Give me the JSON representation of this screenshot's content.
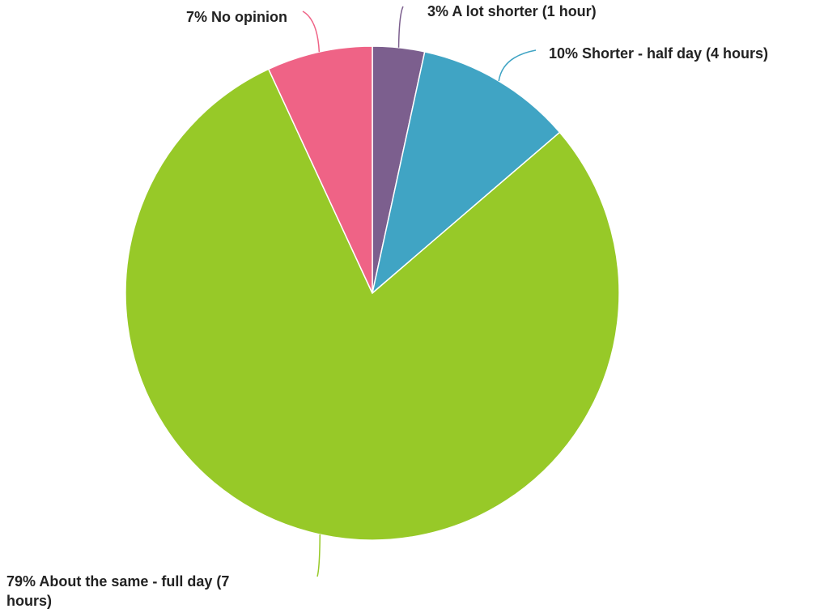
{
  "chart_data": {
    "type": "pie",
    "title": "",
    "start": "top",
    "direction": "clockwise",
    "slices": [
      {
        "label": "3% A lot shorter (1 hour)",
        "value": 3.4,
        "color": "#7c5f8e"
      },
      {
        "label": "10% Shorter - half day (4 hours)",
        "value": 10.3,
        "color": "#40a4c4"
      },
      {
        "label": "79% About the same - full day (7 hours)",
        "value": 79.3,
        "color": "#97c928"
      },
      {
        "label": "7% No opinion",
        "value": 6.9,
        "color": "#ef6386"
      }
    ]
  }
}
